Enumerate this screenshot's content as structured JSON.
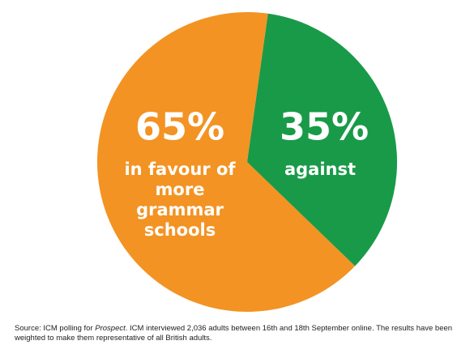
{
  "chart_data": {
    "type": "pie",
    "categories": [
      "in favour of more grammar schools",
      "against"
    ],
    "values": [
      65,
      35
    ],
    "value_labels": [
      "65%",
      "35%"
    ],
    "colors": [
      "#f39323",
      "#199a48"
    ],
    "source": {
      "before": "Source: ICM polling for ",
      "emphasis": "Prospect",
      "after": ". ICM interviewed 2,036 adults between 16th and 18th September online. The results have been weighted to make them representative of all British adults."
    }
  }
}
